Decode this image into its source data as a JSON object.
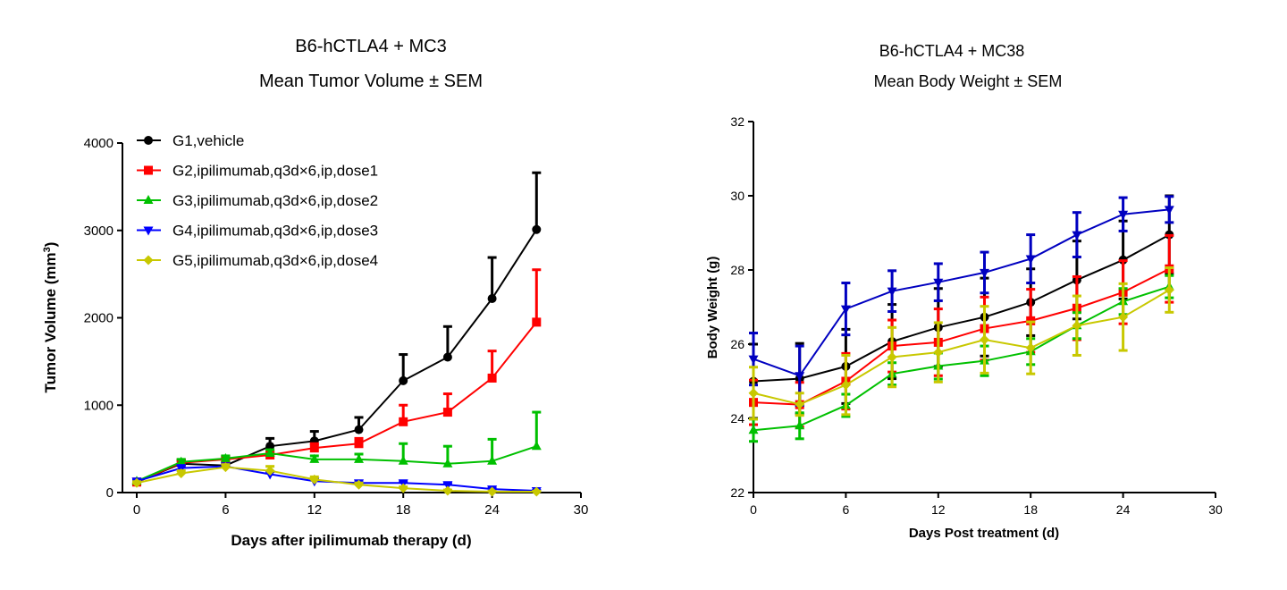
{
  "chart_data": [
    {
      "type": "line",
      "title": "B6-hCTLA4 + MC3",
      "subtitle": "Mean Tumor Volume ± SEM",
      "xlabel": "Days after ipilimumab therapy (d)",
      "ylabel": "Tumor Volume (mm",
      "ylabel_sup": "3",
      "ylabel_end": ")",
      "xlim": [
        0,
        30
      ],
      "ylim": [
        0,
        4000
      ],
      "xticks": [
        "0",
        "6",
        "12",
        "18",
        "24",
        "30"
      ],
      "yticks": [
        "0",
        "1000",
        "2000",
        "3000",
        "4000"
      ],
      "legend": "top-left",
      "x": [
        0,
        3,
        6,
        9,
        12,
        15,
        18,
        21,
        24,
        27
      ],
      "series": [
        {
          "name": "G1,vehicle",
          "color": "#000000",
          "marker": "circle",
          "values": [
            120,
            330,
            310,
            530,
            590,
            720,
            1280,
            1550,
            2220,
            3010
          ],
          "sem": [
            20,
            40,
            30,
            90,
            110,
            140,
            300,
            350,
            470,
            650
          ]
        },
        {
          "name": "G2,ipilimumab,q3d×6,ip,dose1",
          "color": "#ff0000",
          "marker": "square",
          "values": [
            120,
            340,
            380,
            430,
            510,
            560,
            810,
            920,
            1310,
            1950
          ],
          "sem": [
            20,
            30,
            30,
            40,
            50,
            60,
            190,
            210,
            310,
            600
          ]
        },
        {
          "name": "G3,ipilimumab,q3d×6,ip,dose2",
          "color": "#00c000",
          "marker": "triangle-up",
          "values": [
            130,
            350,
            390,
            450,
            380,
            380,
            360,
            330,
            360,
            530
          ],
          "sem": [
            20,
            30,
            30,
            40,
            40,
            60,
            200,
            200,
            250,
            390
          ]
        },
        {
          "name": "G4,ipilimumab,q3d×6,ip,dose3",
          "color": "#0000ff",
          "marker": "triangle-down",
          "values": [
            130,
            280,
            300,
            210,
            130,
            110,
            110,
            90,
            40,
            20
          ],
          "sem": [
            20,
            30,
            30,
            30,
            20,
            15,
            15,
            15,
            10,
            5
          ]
        },
        {
          "name": "G5,ipilimumab,q3d×6,ip,dose4",
          "color": "#c8c800",
          "marker": "diamond",
          "values": [
            110,
            220,
            290,
            250,
            150,
            90,
            50,
            20,
            10,
            10
          ],
          "sem": [
            15,
            30,
            30,
            50,
            30,
            20,
            15,
            10,
            5,
            5
          ]
        }
      ]
    },
    {
      "type": "line",
      "title": "B6-hCTLA4 + MC38",
      "subtitle": "Mean Body Weight ± SEM",
      "xlabel": "Days Post treatment (d)",
      "ylabel": "Body Weight (g)",
      "xlim": [
        0,
        30
      ],
      "ylim": [
        22,
        32
      ],
      "xticks": [
        "0",
        "6",
        "12",
        "18",
        "24",
        "30"
      ],
      "yticks": [
        "22",
        "24",
        "26",
        "28",
        "30",
        "32"
      ],
      "x": [
        0,
        3,
        6,
        9,
        12,
        15,
        18,
        21,
        24,
        27
      ],
      "series": [
        {
          "color": "#000000",
          "marker": "circle",
          "values": [
            25.0,
            25.07,
            25.4,
            26.07,
            26.45,
            26.73,
            27.13,
            27.73,
            28.27,
            28.95
          ],
          "sem": [
            1.0,
            0.95,
            1.0,
            1.0,
            1.05,
            1.05,
            0.9,
            1.05,
            1.05,
            1.05
          ]
        },
        {
          "color": "#ff0000",
          "marker": "square",
          "values": [
            24.43,
            24.37,
            25.0,
            25.95,
            26.05,
            26.42,
            26.63,
            26.97,
            27.4,
            28.03
          ],
          "sem": [
            0.6,
            0.6,
            0.75,
            0.7,
            0.9,
            0.85,
            0.85,
            0.85,
            0.85,
            0.9
          ]
        },
        {
          "color": "#00c000",
          "marker": "triangle-up",
          "values": [
            23.68,
            23.8,
            24.35,
            25.2,
            25.41,
            25.55,
            25.8,
            26.5,
            27.15,
            27.55
          ],
          "sem": [
            0.3,
            0.35,
            0.3,
            0.3,
            0.35,
            0.4,
            0.35,
            0.35,
            0.35,
            0.3
          ]
        },
        {
          "color": "#0000c0",
          "marker": "triangle-down",
          "values": [
            25.6,
            25.15,
            26.95,
            27.43,
            27.67,
            27.93,
            28.3,
            28.95,
            29.5,
            29.63
          ],
          "sem": [
            0.7,
            0.8,
            0.7,
            0.55,
            0.5,
            0.55,
            0.65,
            0.6,
            0.45,
            0.35
          ]
        },
        {
          "color": "#c8c800",
          "marker": "diamond",
          "values": [
            24.68,
            24.38,
            24.9,
            25.65,
            25.78,
            26.12,
            25.9,
            26.5,
            26.73,
            27.46
          ],
          "sem": [
            0.7,
            0.3,
            0.8,
            0.8,
            0.8,
            0.9,
            0.7,
            0.8,
            0.9,
            0.6
          ]
        }
      ]
    }
  ]
}
